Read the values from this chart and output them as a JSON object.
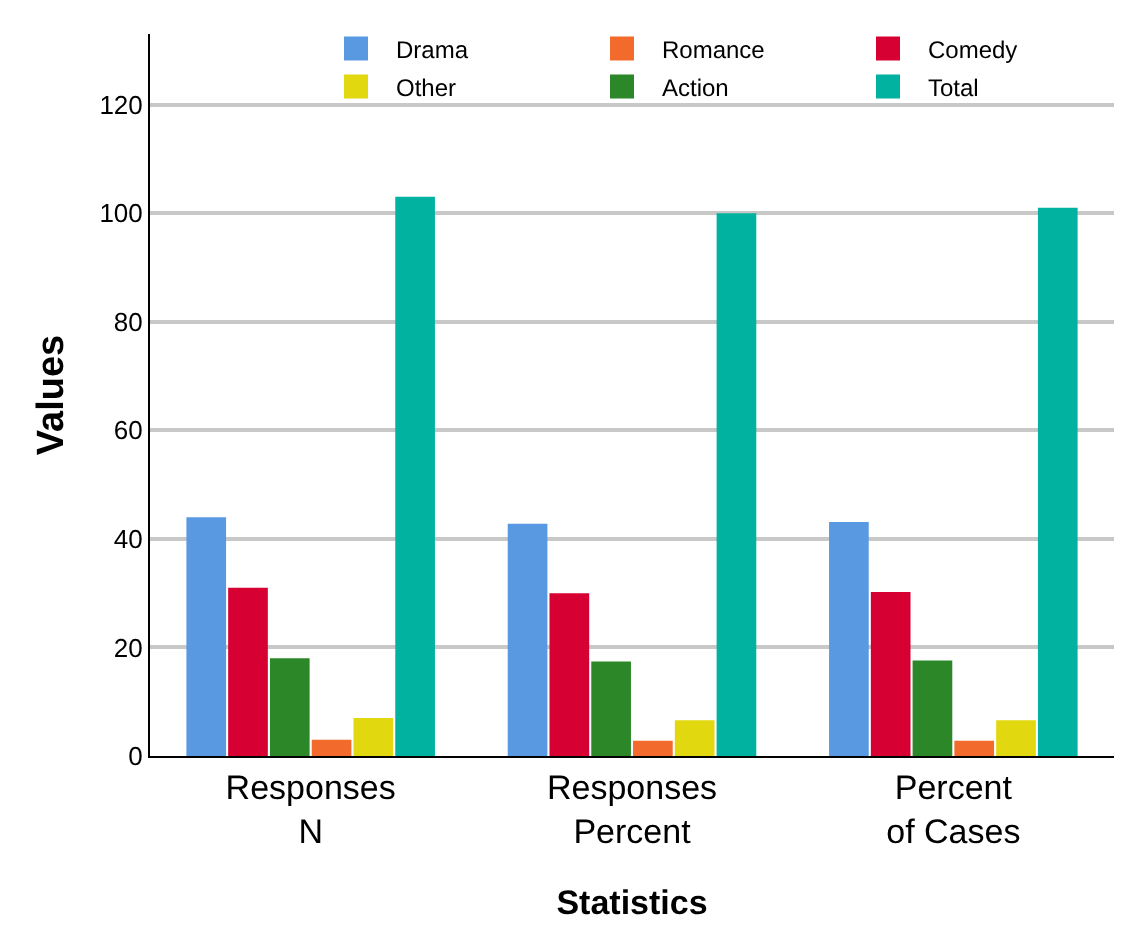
{
  "chart_data": {
    "type": "bar",
    "xlabel": "Statistics",
    "ylabel": "Values",
    "categories": [
      "Responses N",
      "Responses Percent",
      "Percent of Cases"
    ],
    "series": [
      {
        "name": "Drama",
        "color": "#5899e2",
        "values": [
          44,
          42.8,
          43.1
        ]
      },
      {
        "name": "Comedy",
        "color": "#d70033",
        "values": [
          31,
          30,
          30.2
        ]
      },
      {
        "name": "Action",
        "color": "#2b8727",
        "values": [
          18,
          17.4,
          17.6
        ]
      },
      {
        "name": "Romance",
        "color": "#f26a2c",
        "values": [
          3,
          2.8,
          2.8
        ]
      },
      {
        "name": "Other",
        "color": "#e2d810",
        "values": [
          7,
          6.6,
          6.6
        ]
      },
      {
        "name": "Total",
        "color": "#00b29f",
        "values": [
          103,
          100,
          101
        ]
      }
    ],
    "ylim": [
      0,
      133
    ],
    "yticks": [
      0,
      20,
      40,
      60,
      80,
      100,
      120
    ],
    "grid": "y",
    "legend": "top right"
  }
}
